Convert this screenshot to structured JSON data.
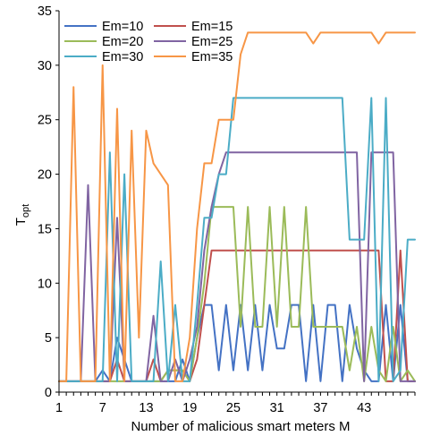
{
  "chart_data": {
    "type": "line",
    "xlabel": "Number of malicious smart meters M",
    "ylabel": {
      "main": "T",
      "sub": "opt"
    },
    "xlim": [
      1,
      50
    ],
    "ylim": [
      0,
      35
    ],
    "xticks": [
      1,
      7,
      13,
      19,
      25,
      31,
      37,
      43
    ],
    "yticks": [
      0,
      5,
      10,
      15,
      20,
      25,
      30,
      35
    ],
    "grid": false,
    "legend_position": "top-left",
    "legend_columns": 2,
    "x": [
      1,
      2,
      3,
      4,
      5,
      6,
      7,
      8,
      9,
      10,
      11,
      12,
      13,
      14,
      15,
      16,
      17,
      18,
      19,
      20,
      21,
      22,
      23,
      24,
      25,
      26,
      27,
      28,
      29,
      30,
      31,
      32,
      33,
      34,
      35,
      36,
      37,
      38,
      39,
      40,
      41,
      42,
      43,
      44,
      45,
      46,
      47,
      48,
      49,
      50
    ],
    "series": [
      {
        "name": "Em=10",
        "color": "#4472C4",
        "values": [
          1,
          1,
          1,
          1,
          1,
          1,
          2,
          1,
          5,
          3,
          1,
          1,
          1,
          1,
          1,
          1,
          1,
          3,
          1,
          5,
          8,
          8,
          2,
          8,
          2,
          8,
          2,
          8,
          2,
          8,
          4,
          4,
          8,
          8,
          1,
          8,
          1,
          8,
          8,
          1,
          8,
          4,
          2,
          1,
          1,
          8,
          1,
          8,
          1,
          1
        ]
      },
      {
        "name": "Em=15",
        "color": "#C0504D",
        "values": [
          1,
          1,
          1,
          1,
          1,
          1,
          1,
          1,
          3,
          1,
          1,
          1,
          1,
          3,
          1,
          2,
          2,
          2,
          1,
          3,
          8,
          13,
          13,
          13,
          13,
          13,
          13,
          13,
          13,
          13,
          13,
          13,
          13,
          13,
          13,
          13,
          13,
          13,
          13,
          13,
          13,
          13,
          13,
          13,
          13,
          1,
          1,
          13,
          1,
          1
        ]
      },
      {
        "name": "Em=20",
        "color": "#9BBB59",
        "values": [
          1,
          1,
          1,
          1,
          1,
          1,
          1,
          1,
          1,
          1,
          1,
          1,
          1,
          1,
          1,
          2,
          2,
          2,
          1,
          5,
          10,
          17,
          17,
          17,
          17,
          6,
          17,
          6,
          6,
          17,
          6,
          17,
          6,
          6,
          17,
          6,
          6,
          6,
          6,
          6,
          2,
          6,
          1,
          6,
          2,
          1,
          6,
          1,
          2,
          1
        ]
      },
      {
        "name": "Em=25",
        "color": "#8064A2",
        "values": [
          1,
          1,
          1,
          1,
          19,
          1,
          1,
          1,
          16,
          1,
          1,
          1,
          1,
          7,
          1,
          1,
          3,
          1,
          3,
          6,
          13,
          17,
          20,
          22,
          22,
          22,
          22,
          22,
          22,
          22,
          22,
          22,
          22,
          22,
          22,
          22,
          22,
          22,
          22,
          22,
          22,
          22,
          1,
          22,
          22,
          22,
          22,
          1,
          1,
          1
        ]
      },
      {
        "name": "Em=30",
        "color": "#4BACC6",
        "values": [
          1,
          1,
          1,
          1,
          1,
          1,
          1,
          22,
          1,
          20,
          1,
          1,
          1,
          1,
          12,
          1,
          8,
          1,
          1,
          8,
          16,
          16,
          20,
          20,
          27,
          27,
          27,
          27,
          27,
          27,
          27,
          27,
          27,
          27,
          27,
          27,
          27,
          27,
          27,
          27,
          14,
          14,
          14,
          27,
          1,
          27,
          1,
          2,
          14,
          14
        ]
      },
      {
        "name": "Em=35",
        "color": "#F79646",
        "values": [
          1,
          1,
          28,
          1,
          1,
          1,
          30,
          1,
          26,
          1,
          24,
          5,
          24,
          21,
          20,
          19,
          1,
          1,
          5,
          15,
          21,
          21,
          25,
          25,
          25,
          31,
          33,
          33,
          33,
          33,
          33,
          33,
          33,
          33,
          33,
          32,
          33,
          33,
          33,
          33,
          33,
          33,
          33,
          33,
          32,
          33,
          33,
          33,
          33,
          33
        ]
      }
    ]
  }
}
